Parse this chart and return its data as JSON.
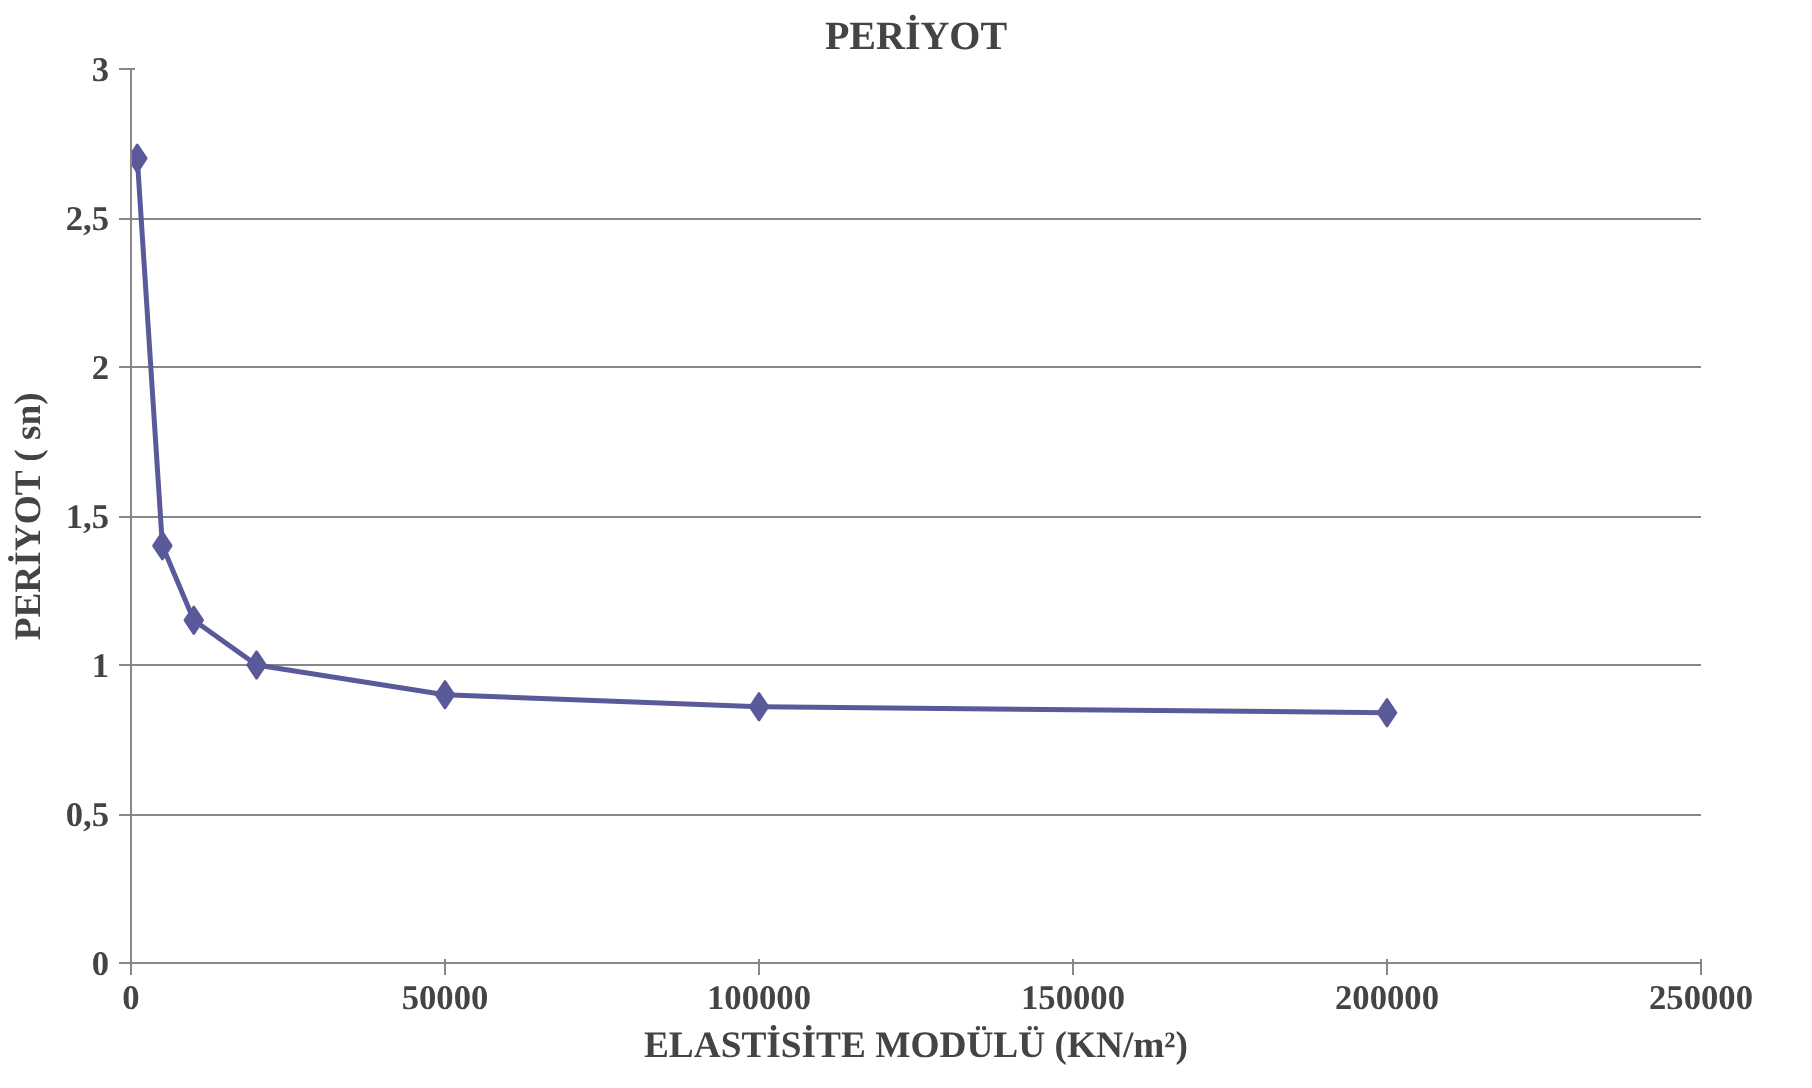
{
  "chart_data": {
    "type": "line",
    "title": "PERİYOT",
    "xlabel": "ELASTİSİTE MODÜLÜ (KN/m²)",
    "ylabel": "PERİYOT ( sn)",
    "x": [
      1000,
      5000,
      10000,
      20000,
      50000,
      100000,
      200000
    ],
    "series": [
      {
        "color": "#5a5a9a",
        "values": [
          2.7,
          1.4,
          1.15,
          1.0,
          0.9,
          0.86,
          0.84
        ]
      }
    ],
    "xlim": [
      0,
      250000
    ],
    "xticks": [
      0,
      50000,
      100000,
      150000,
      200000,
      250000
    ],
    "ylim": [
      0,
      3
    ],
    "yticks": [
      0,
      {
        "value": 0.5,
        "label": "0,5"
      },
      1,
      {
        "value": 1.5,
        "label": "1,5"
      },
      2,
      {
        "value": 2.5,
        "label": "2,5"
      },
      3
    ],
    "grid": "y",
    "marker": "diamond",
    "line_style": "solid"
  }
}
